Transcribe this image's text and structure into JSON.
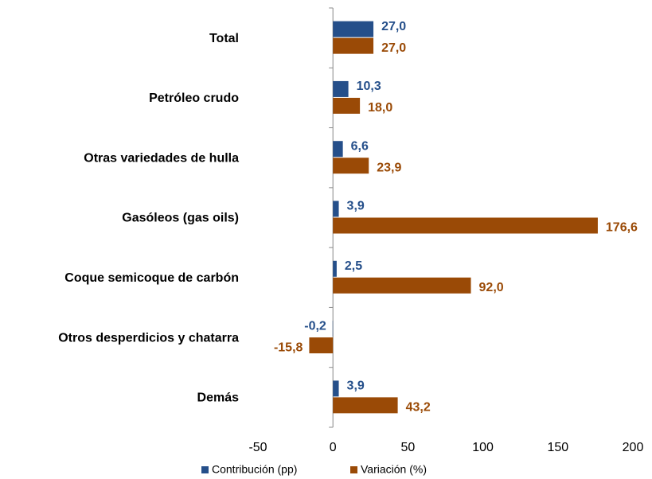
{
  "chart_data": {
    "type": "bar",
    "orientation": "horizontal",
    "categories": [
      "Total",
      "Petróleo crudo",
      "Otras variedades de hulla",
      "Gasóleos (gas oils)",
      "Coque semicoque de carbón",
      "Otros desperdicios y chatarra",
      "Demás"
    ],
    "series": [
      {
        "name": "Contribución (pp)",
        "color": "#254f8a",
        "values": [
          27.0,
          10.3,
          6.6,
          3.9,
          2.5,
          -0.2,
          3.9
        ],
        "value_labels": [
          "27,0",
          "10,3",
          "6,6",
          "3,9",
          "2,5",
          "-0,2",
          "3,9"
        ]
      },
      {
        "name": "Variación (%)",
        "color": "#9a4a06",
        "values": [
          27.0,
          18.0,
          23.9,
          176.6,
          92.0,
          -15.8,
          43.2
        ],
        "value_labels": [
          "27,0",
          "18,0",
          "23,9",
          "176,6",
          "92,0",
          "-15,8",
          "43,2"
        ]
      }
    ],
    "xlim": [
      -50,
      200
    ],
    "xticks": [
      -50,
      0,
      50,
      100,
      150,
      200
    ],
    "legend": "bottom"
  }
}
